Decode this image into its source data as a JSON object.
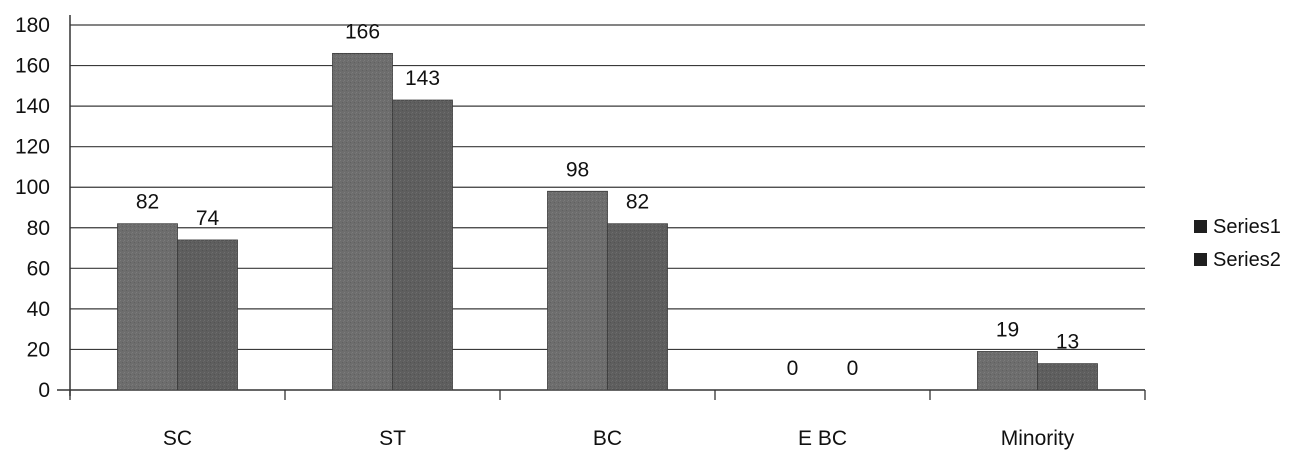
{
  "chart_data": {
    "type": "bar",
    "title": "",
    "xlabel": "",
    "ylabel": "",
    "categories": [
      "SC",
      "ST",
      "BC",
      "E BC",
      "Minority"
    ],
    "series": [
      {
        "name": "Series1",
        "values": [
          82,
          166,
          98,
          0,
          19
        ],
        "labels": [
          "82",
          "166",
          "98",
          "0",
          "19"
        ],
        "color": "#6d6d6d"
      },
      {
        "name": "Series2",
        "values": [
          74,
          143,
          82,
          0,
          13
        ],
        "labels": [
          "74",
          "143",
          "82",
          "0",
          "13"
        ],
        "color": "#5e5e5e"
      }
    ],
    "ylim": [
      0,
      180
    ],
    "yticks": [
      "0",
      "20",
      "40",
      "60",
      "80",
      "100",
      "120",
      "140",
      "160",
      "180"
    ],
    "grid": true,
    "legend_position": "right"
  }
}
